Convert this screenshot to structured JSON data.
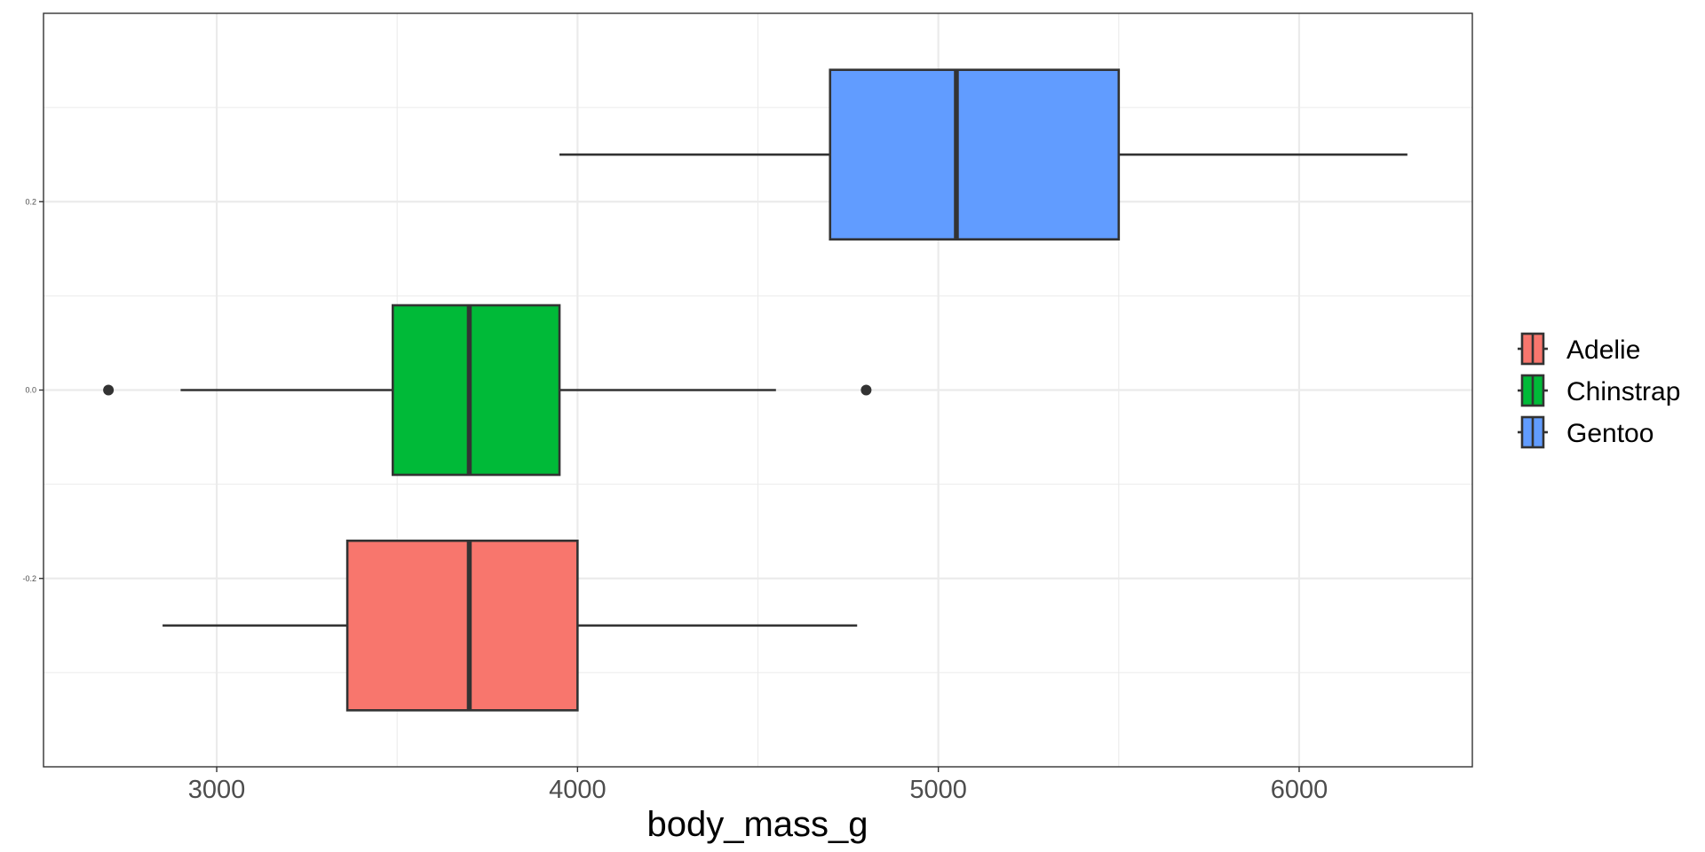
{
  "chart_data": {
    "type": "boxplot",
    "orientation": "horizontal",
    "title": "",
    "xlabel": "body_mass_g",
    "ylabel": "",
    "xlim": [
      2520,
      6480
    ],
    "ylim": [
      -0.4,
      0.4
    ],
    "x_ticks": [
      3000,
      4000,
      5000,
      6000
    ],
    "y_ticks": [
      -0.2,
      0.0,
      0.2
    ],
    "y_tick_labels": [
      "-0.2",
      "0.0",
      "0.2"
    ],
    "grid": true,
    "legend_position": "right",
    "series": [
      {
        "name": "Adelie",
        "color": "#F8766D",
        "position": -0.25,
        "whisker_low": 2850,
        "q1": 3362,
        "median": 3700,
        "q3": 4000,
        "whisker_high": 4775,
        "outliers": []
      },
      {
        "name": "Chinstrap",
        "color": "#00BA38",
        "position": 0.0,
        "whisker_low": 2900,
        "q1": 3488,
        "median": 3700,
        "q3": 3950,
        "whisker_high": 4550,
        "outliers": [
          2700,
          4800
        ]
      },
      {
        "name": "Gentoo",
        "color": "#619CFF",
        "position": 0.25,
        "whisker_low": 3950,
        "q1": 4700,
        "median": 5050,
        "q3": 5500,
        "whisker_high": 6300,
        "outliers": []
      }
    ]
  }
}
